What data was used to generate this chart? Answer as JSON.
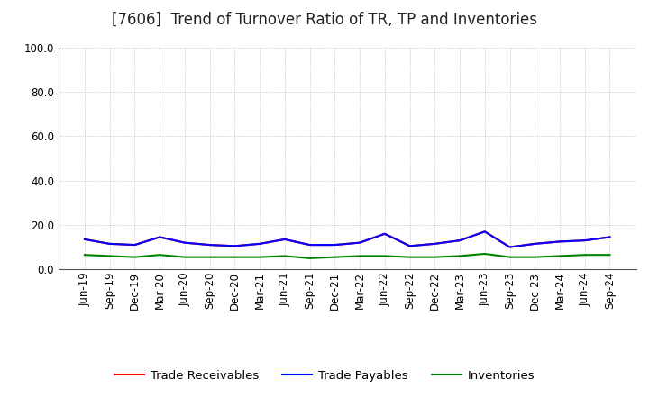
{
  "title": "[7606]  Trend of Turnover Ratio of TR, TP and Inventories",
  "xlabels": [
    "Jun-19",
    "Sep-19",
    "Dec-19",
    "Mar-20",
    "Jun-20",
    "Sep-20",
    "Dec-20",
    "Mar-21",
    "Jun-21",
    "Sep-21",
    "Dec-21",
    "Mar-22",
    "Jun-22",
    "Sep-22",
    "Dec-22",
    "Mar-23",
    "Jun-23",
    "Sep-23",
    "Dec-23",
    "Mar-24",
    "Jun-24",
    "Sep-24"
  ],
  "trade_receivables": [
    13.5,
    11.5,
    11.0,
    14.5,
    12.0,
    11.0,
    10.5,
    11.5,
    13.5,
    11.0,
    11.0,
    12.0,
    16.0,
    10.5,
    11.5,
    13.0,
    17.0,
    10.0,
    11.5,
    12.5,
    13.0,
    14.5
  ],
  "trade_payables": [
    13.5,
    11.5,
    11.0,
    14.5,
    12.0,
    11.0,
    10.5,
    11.5,
    13.5,
    11.0,
    11.0,
    12.0,
    16.0,
    10.5,
    11.5,
    13.0,
    17.0,
    10.0,
    11.5,
    12.5,
    13.0,
    14.5
  ],
  "inventories": [
    6.5,
    6.0,
    5.5,
    6.5,
    5.5,
    5.5,
    5.5,
    5.5,
    6.0,
    5.0,
    5.5,
    6.0,
    6.0,
    5.5,
    5.5,
    6.0,
    7.0,
    5.5,
    5.5,
    6.0,
    6.5,
    6.5
  ],
  "ylim": [
    0.0,
    100.0
  ],
  "yticks": [
    0.0,
    20.0,
    40.0,
    60.0,
    80.0,
    100.0
  ],
  "color_tr": "#ff0000",
  "color_tp": "#0000ff",
  "color_inv": "#008000",
  "legend_labels": [
    "Trade Receivables",
    "Trade Payables",
    "Inventories"
  ],
  "background_color": "#ffffff",
  "plot_bg_color": "#ffffff",
  "grid_color": "#b0b0b0",
  "title_fontsize": 12,
  "axis_fontsize": 8.5,
  "legend_fontsize": 9.5
}
